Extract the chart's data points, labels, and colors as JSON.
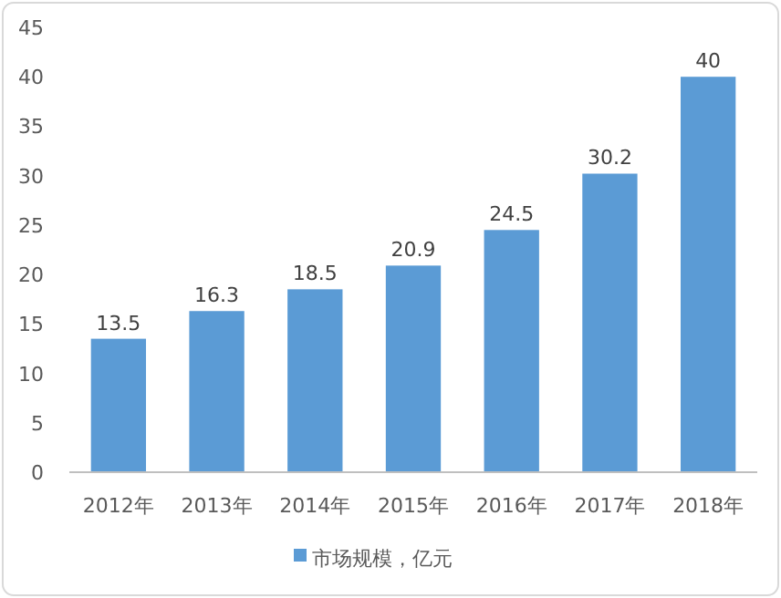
{
  "chart_data": {
    "type": "bar",
    "categories": [
      "2012年",
      "2013年",
      "2014年",
      "2015年",
      "2016年",
      "2017年",
      "2018年"
    ],
    "series": [
      {
        "name": "市场规模，亿元",
        "color": "#5b9bd5",
        "values": [
          13.5,
          16.3,
          18.5,
          20.9,
          24.5,
          30.2,
          40
        ]
      }
    ],
    "ylim": [
      0,
      45
    ],
    "yticks": [
      0,
      5,
      10,
      15,
      20,
      25,
      30,
      35,
      40,
      45
    ],
    "data_labels": true,
    "legend": "bottom",
    "grid": false
  }
}
